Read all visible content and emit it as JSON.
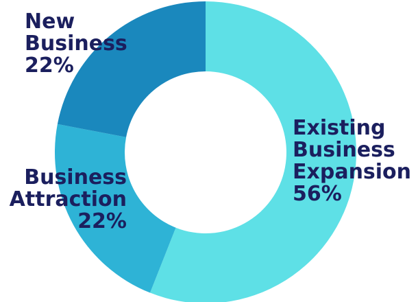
{
  "chart_data": {
    "type": "pie",
    "variant": "donut",
    "title": "",
    "slices": [
      {
        "label_lines": [
          "Existing",
          "Business",
          "Expansion"
        ],
        "value": 56,
        "value_label": "56%",
        "color": "#5ee0e6"
      },
      {
        "label_lines": [
          "Business",
          "Attraction"
        ],
        "value": 22,
        "value_label": "22%",
        "color": "#2eb3d6"
      },
      {
        "label_lines": [
          "New",
          "Business"
        ],
        "value": 22,
        "value_label": "22%",
        "color": "#1a88bd"
      }
    ],
    "label_color": "#1b1f5e",
    "legend": "none"
  }
}
